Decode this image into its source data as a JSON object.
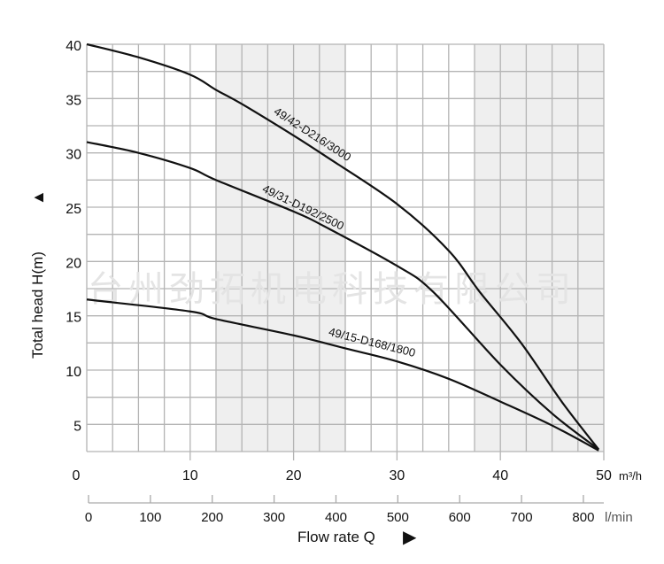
{
  "chart_data": {
    "type": "line",
    "title": "",
    "xlabel": "Flow rate Q",
    "ylabel": "Total head H(m)",
    "x_unit": "m³/h",
    "xlim": [
      0,
      50
    ],
    "ylim": [
      2.5,
      40
    ],
    "grid": true,
    "x_ticks": [
      0,
      10,
      20,
      30,
      40,
      50
    ],
    "y_ticks": [
      40,
      35,
      30,
      25,
      20,
      15,
      10,
      5
    ],
    "y_zero_label": "0",
    "secondary_x_axis": {
      "unit": "l/min",
      "ticks": [
        0,
        100,
        200,
        300,
        400,
        500,
        600,
        700,
        800
      ],
      "max": 833
    },
    "shaded_x_ranges": [
      [
        12.5,
        25
      ],
      [
        37.5,
        50
      ]
    ],
    "series": [
      {
        "name": "49/42-D216/3000",
        "x": [
          0,
          5,
          10,
          12.5,
          15,
          20,
          23.25,
          30,
          35,
          38,
          42,
          46,
          49.5
        ],
        "y": [
          40,
          38.8,
          37.2,
          35.8,
          34.5,
          31.6,
          29.6,
          25.3,
          21,
          17.2,
          12.5,
          7,
          2.7
        ]
      },
      {
        "name": "49/31-D192/2500",
        "x": [
          0,
          5,
          10,
          12.5,
          20,
          23.25,
          30,
          33.5,
          40,
          45,
          49.5
        ],
        "y": [
          31,
          30,
          28.6,
          27.5,
          24.6,
          23.1,
          19.6,
          17.2,
          10.5,
          6,
          2.7
        ]
      },
      {
        "name": "49/15-D168/1800",
        "x": [
          0,
          10,
          12.5,
          20,
          25,
          30,
          35,
          40,
          45,
          49.5
        ],
        "y": [
          16.5,
          15.4,
          14.7,
          13.2,
          12,
          10.8,
          9.2,
          7.1,
          4.9,
          2.6
        ]
      }
    ]
  },
  "watermark": "台州劲拓机电科技有限公司",
  "arrows": {
    "y": "▲",
    "x": "▶"
  }
}
